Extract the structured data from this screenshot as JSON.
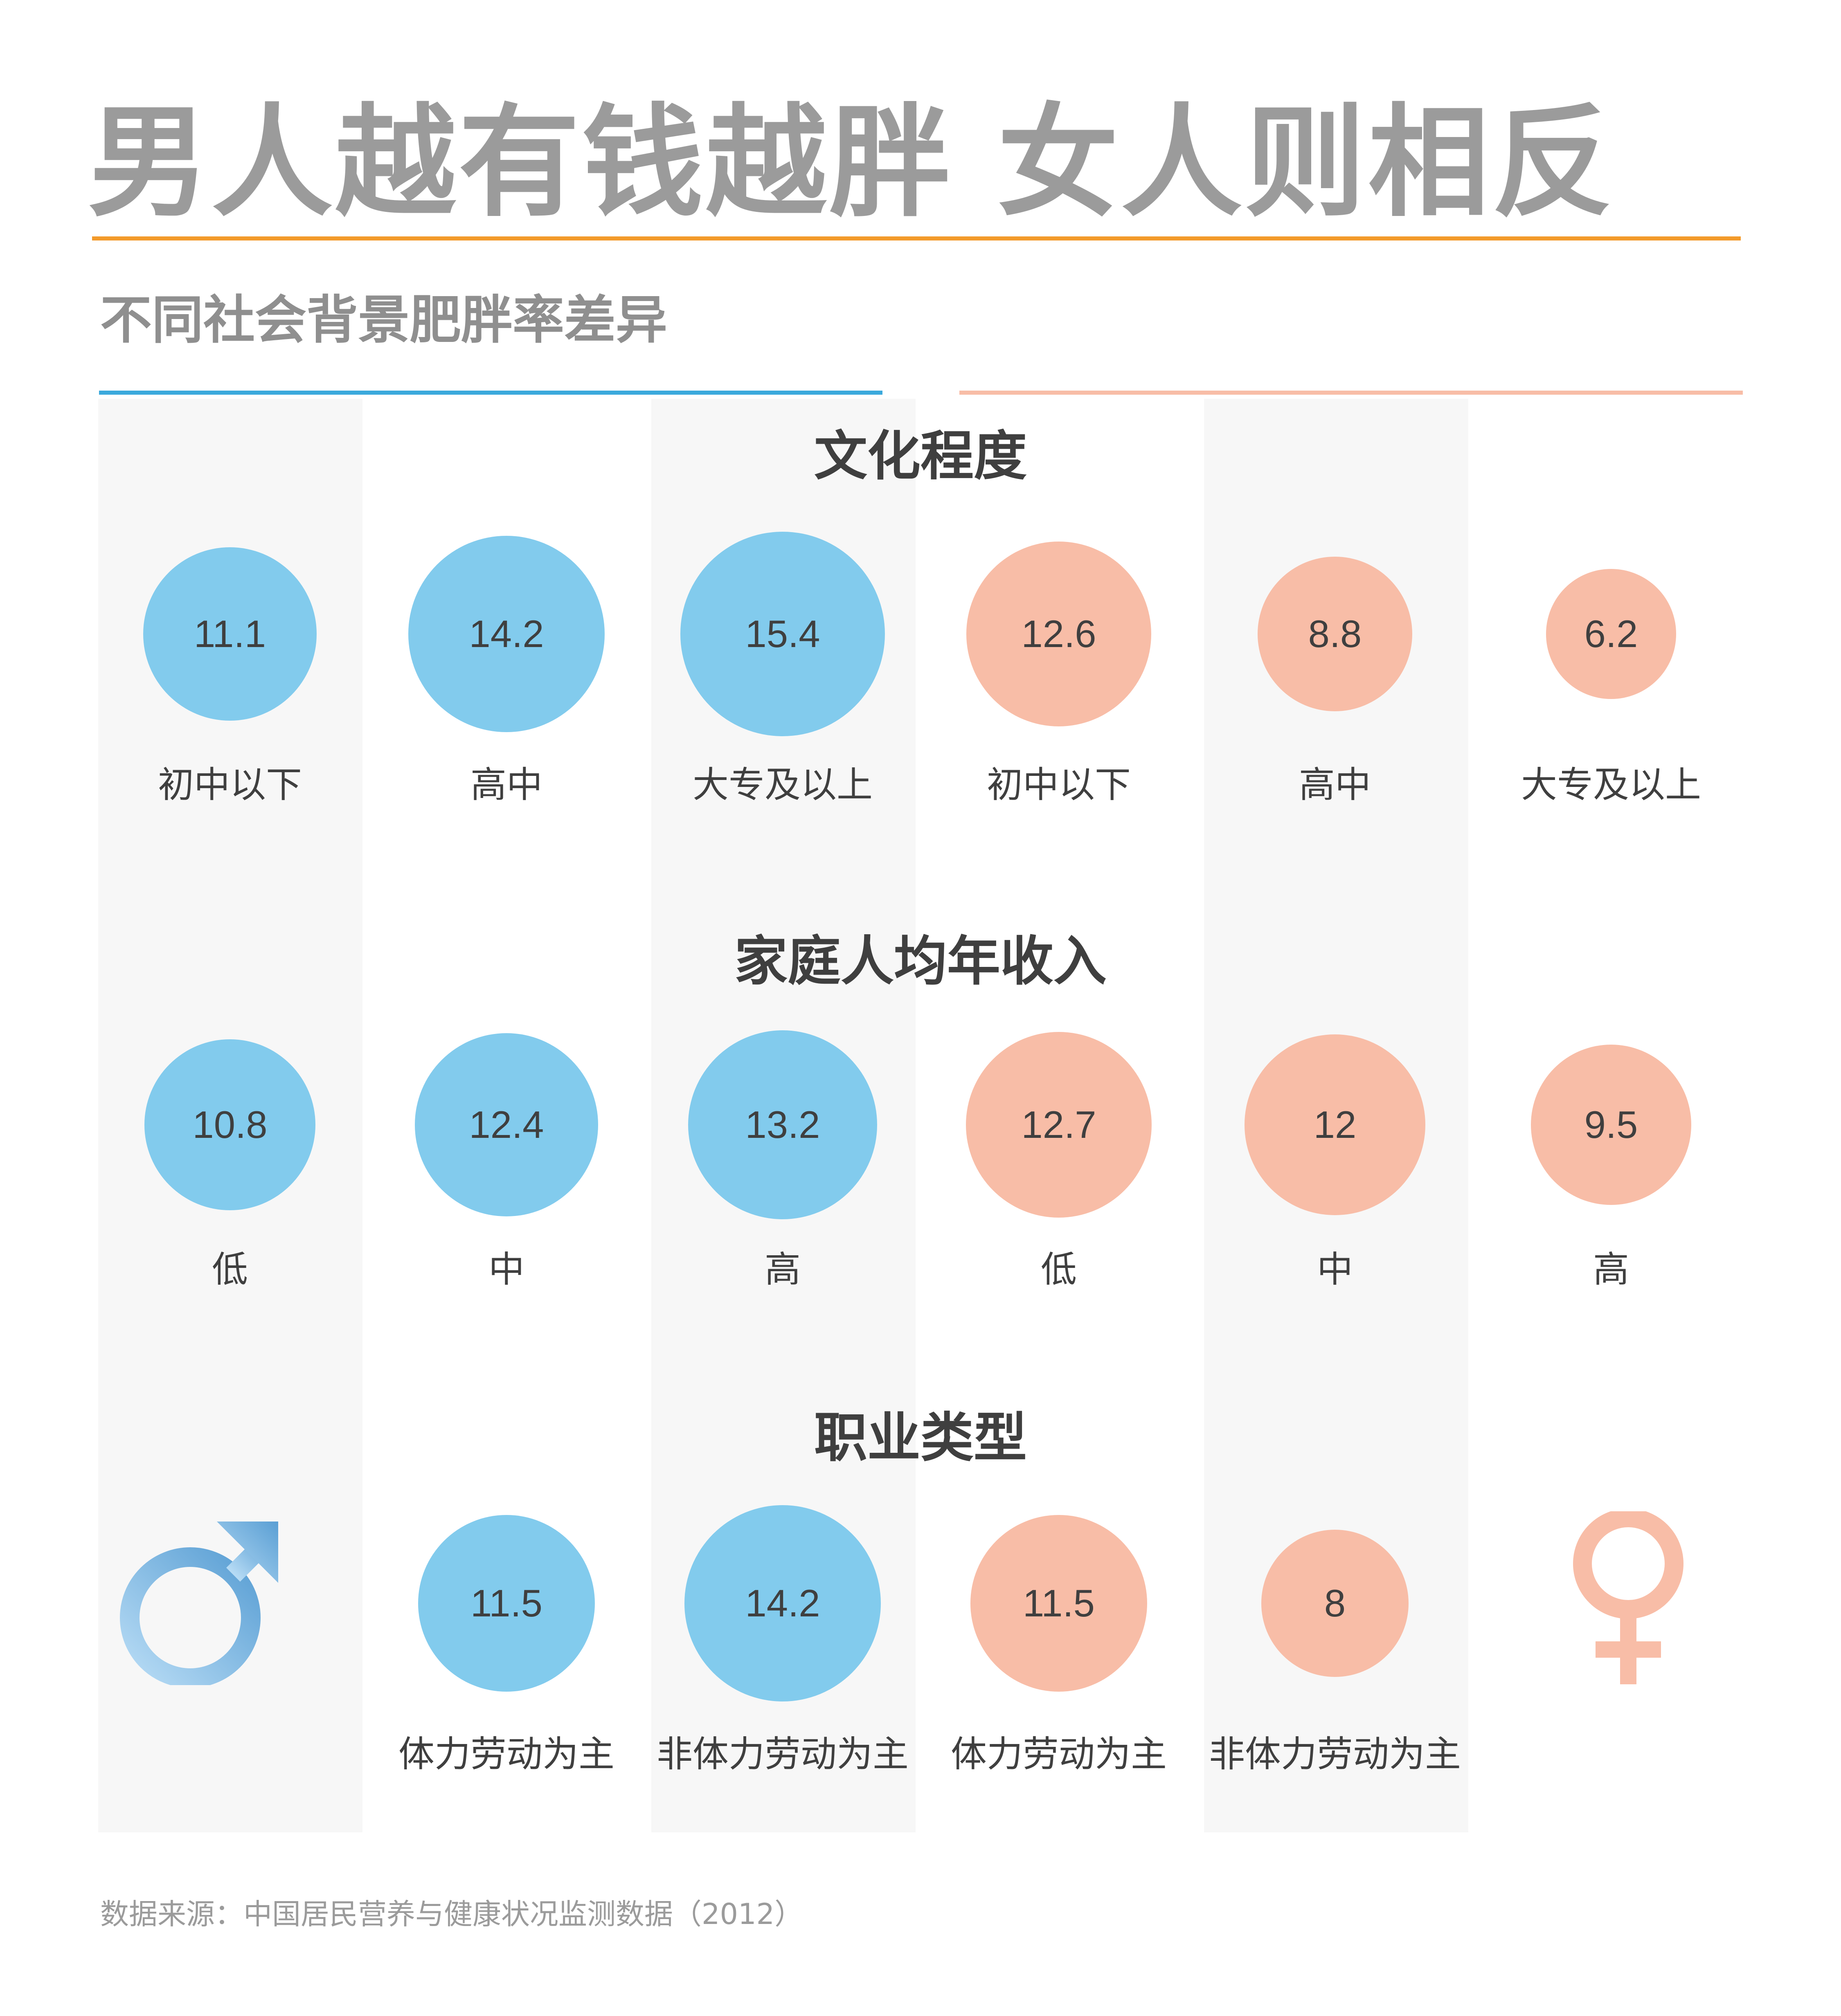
{
  "title": "男人越有钱越胖 女人则相反",
  "subtitle": "不同社会背景肥胖率差异",
  "source": "数据来源：中国居民营养与健康状况监测数据（2012）",
  "colors": {
    "male": "#82cbed",
    "female": "#f8bda7",
    "title_rule": "#f39a2b",
    "male_rule": "#3ba9dc",
    "female_rule": "#f8bda7",
    "male_symbol": "#6aa6d6",
    "female_symbol": "#f8bda7"
  },
  "legend": {
    "male": "male-symbol-icon",
    "female": "female-symbol-icon"
  },
  "chart_data": {
    "type": "bubble",
    "groups": [
      "男",
      "女"
    ],
    "sections": [
      {
        "title": "文化程度",
        "male": [
          {
            "label": "初中以下",
            "value": 11.1
          },
          {
            "label": "高中",
            "value": 14.2
          },
          {
            "label": "大专及以上",
            "value": 15.4
          }
        ],
        "female": [
          {
            "label": "初中以下",
            "value": 12.6
          },
          {
            "label": "高中",
            "value": 8.8
          },
          {
            "label": "大专及以上",
            "value": 6.2
          }
        ]
      },
      {
        "title": "家庭人均年收入",
        "male": [
          {
            "label": "低",
            "value": 10.8
          },
          {
            "label": "中",
            "value": 12.4
          },
          {
            "label": "高",
            "value": 13.2
          }
        ],
        "female": [
          {
            "label": "低",
            "value": 12.7
          },
          {
            "label": "中",
            "value": 12
          },
          {
            "label": "高",
            "value": 9.5
          }
        ]
      },
      {
        "title": "职业类型",
        "male": [
          {
            "label": "体力劳动为主",
            "value": 11.5
          },
          {
            "label": "非体力劳动为主",
            "value": 14.2
          }
        ],
        "female": [
          {
            "label": "体力劳动为主",
            "value": 11.5
          },
          {
            "label": "非体力劳动为主",
            "value": 8
          }
        ]
      }
    ]
  }
}
